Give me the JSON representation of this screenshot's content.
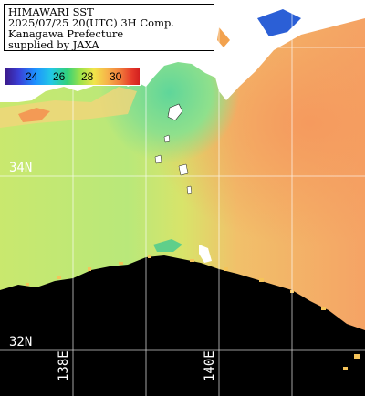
{
  "info": {
    "line1": "HIMAWARI SST",
    "line2": "2025/07/25 20(UTC) 3H Comp.",
    "line3": "Kanagawa Prefecture",
    "line4": "supplied by JAXA"
  },
  "colorbar": {
    "ticks": [
      "24",
      "26",
      "28",
      "30"
    ],
    "colors": [
      "#3b1a8c",
      "#1e90ff",
      "#33d17a",
      "#f1e54a",
      "#f07a3a",
      "#d21f1f"
    ]
  },
  "grid": {
    "latitudes": [
      "34N",
      "32N"
    ],
    "longitudes": [
      "138E",
      "140E"
    ]
  },
  "colors": {
    "land": "#ffffff",
    "no_data": "#000000",
    "warm_water": "#f6a866",
    "cool_water": "#9ee58a",
    "kuroshio_front": "#f4d86a"
  }
}
